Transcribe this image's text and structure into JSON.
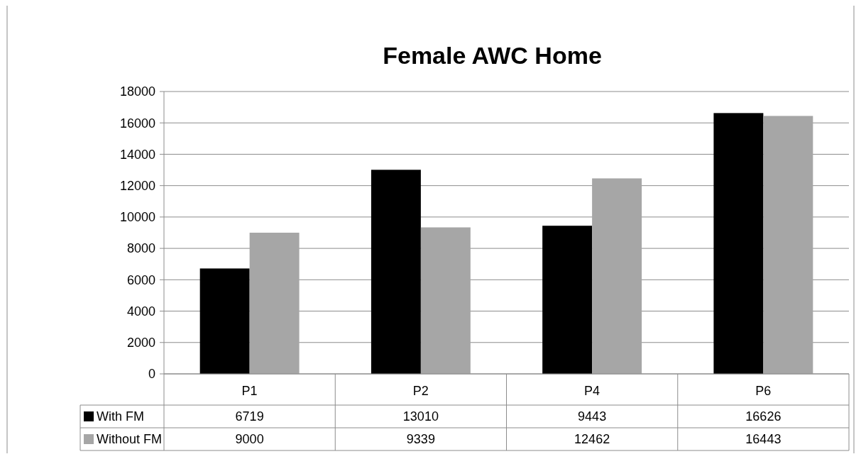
{
  "chart_data": {
    "type": "bar",
    "title": "Female AWC Home",
    "categories": [
      "P1",
      "P2",
      "P4",
      "P6"
    ],
    "series": [
      {
        "name": "With FM",
        "color": "#000000",
        "values": [
          6719,
          13010,
          9443,
          16626
        ]
      },
      {
        "name": "Without FM",
        "color": "#a6a6a6",
        "values": [
          9000,
          9339,
          12462,
          16443
        ]
      }
    ],
    "ylim": [
      0,
      18000
    ],
    "yticks": [
      0,
      2000,
      4000,
      6000,
      8000,
      10000,
      12000,
      14000,
      16000,
      18000
    ],
    "grid": "y",
    "legend": "bottom",
    "data_labels": true
  }
}
